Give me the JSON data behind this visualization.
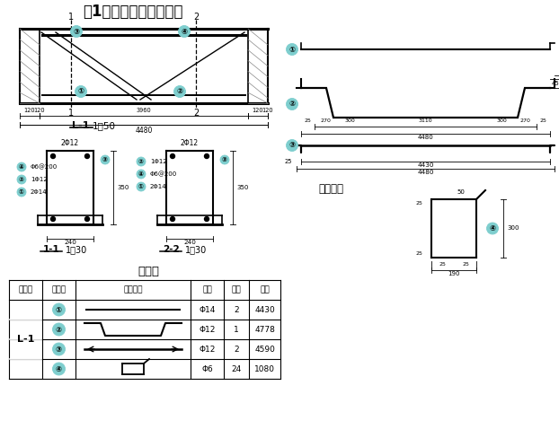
{
  "title": "例1：现浇钢筋混凝土梁",
  "bg_color": "#ffffff",
  "line_color": "#000000",
  "circle_color": "#7ecece",
  "table_title": "钢筋表",
  "headers": [
    "梁编号",
    "钢筋号",
    "钢筋简图",
    "规格",
    "数量",
    "长度"
  ],
  "beam_label": "L-1",
  "rows": [
    {
      "num": "①",
      "spec": "Φ14",
      "qty": "2",
      "len": "4430"
    },
    {
      "num": "②",
      "spec": "Φ12",
      "qty": "1",
      "len": "4778"
    },
    {
      "num": "③",
      "spec": "Φ12",
      "qty": "2",
      "len": "4590"
    },
    {
      "num": "④",
      "spec": "Φ6",
      "qty": "24",
      "len": "1080"
    }
  ]
}
